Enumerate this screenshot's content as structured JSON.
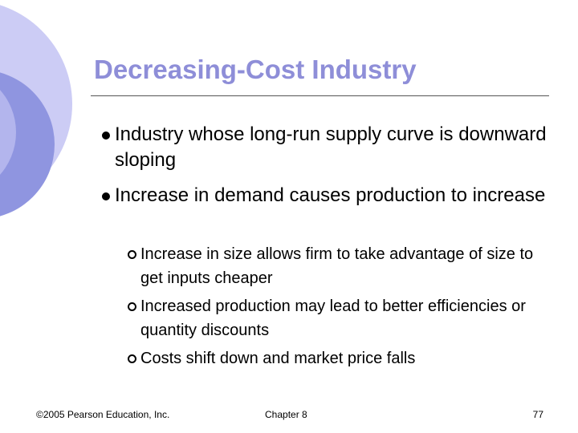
{
  "title": "Decreasing-Cost Industry",
  "bullets": [
    {
      "text": "Industry whose long-run supply curve is downward sloping"
    },
    {
      "text": "Increase in demand causes production to increase",
      "subbullets": [
        "Increase in size allows firm to take advantage of size to get inputs cheaper",
        "Increased production may lead to better efficiencies or quantity discounts",
        "Costs shift down and market price falls"
      ]
    }
  ],
  "footer": {
    "copyright": "©2005 Pearson Education, Inc.",
    "chapter": "Chapter 8",
    "page": "77"
  }
}
